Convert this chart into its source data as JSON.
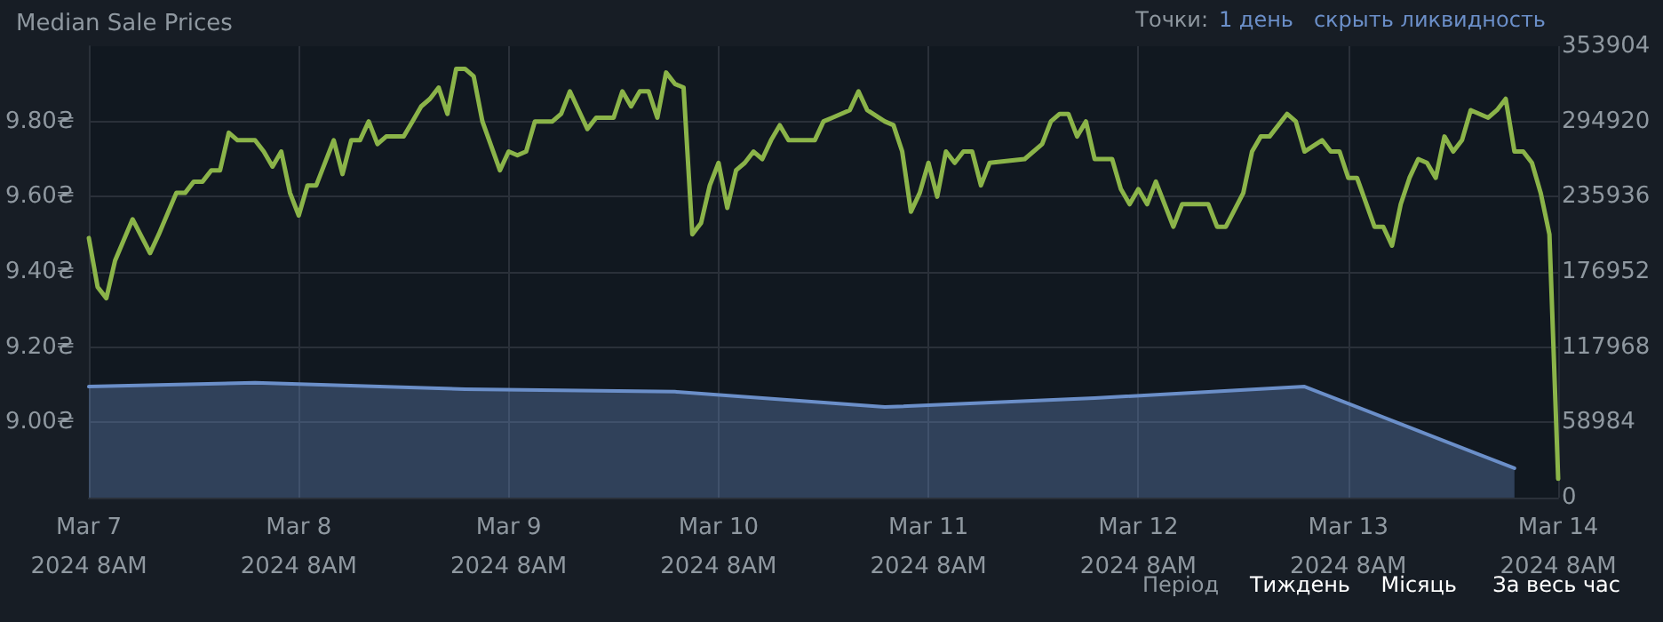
{
  "chart_data": {
    "type": "line",
    "title": "Median Sale Prices",
    "annotations": [
      "Точки:",
      "1 день",
      "скрыть ликвидность",
      "Період",
      "Тиждень",
      "Місяць",
      "За весь час"
    ],
    "xlim": [
      "2024-03-07T08:00",
      "2024-03-14T08:00"
    ],
    "xticks": [
      {
        "value": "2024-03-07T08:00",
        "label": "Mar 7\n2024 8AM"
      },
      {
        "value": "2024-03-08T08:00",
        "label": "Mar 8\n2024 8AM"
      },
      {
        "value": "2024-03-09T08:00",
        "label": "Mar 9\n2024 8AM"
      },
      {
        "value": "2024-03-10T08:00",
        "label": "Mar 10\n2024 8AM"
      },
      {
        "value": "2024-03-11T08:00",
        "label": "Mar 11\n2024 8AM"
      },
      {
        "value": "2024-03-12T08:00",
        "label": "Mar 12\n2024 8AM"
      },
      {
        "value": "2024-03-13T08:00",
        "label": "Mar 13\n2024 8AM"
      },
      {
        "value": "2024-03-14T08:00",
        "label": "Mar 14\n2024 8AM"
      }
    ],
    "ylim": [
      8.8,
      10.0
    ],
    "yticks": [
      {
        "value": 9.0,
        "label": "9.00₴"
      },
      {
        "value": 9.2,
        "label": "9.20₴"
      },
      {
        "value": 9.4,
        "label": "9.40₴"
      },
      {
        "value": 9.6,
        "label": "9.60₴"
      },
      {
        "value": 9.8,
        "label": "9.80₴"
      }
    ],
    "y2lim": [
      0,
      353904
    ],
    "y2ticks": [
      0,
      58984,
      117968,
      176952,
      235936,
      294920,
      353904
    ],
    "grid": true,
    "marker": "none",
    "line_style": "solid",
    "series": [
      {
        "type": "area",
        "axis": "y2",
        "color": "#6b8fc9",
        "x": [
          "2024-03-07T08:00",
          "2024-03-08T03:00",
          "2024-03-09T03:00",
          "2024-03-10T03:00",
          "2024-03-11T03:00",
          "2024-03-12T03:00",
          "2024-03-13T03:00",
          "2024-03-14T03:00"
        ],
        "values": [
          87000,
          90000,
          85000,
          83000,
          71000,
          78000,
          87000,
          23000
        ]
      },
      {
        "color": "#8bb449",
        "x": [
          "2024-03-07T08:00",
          "2024-03-07T09:00",
          "2024-03-07T10:00",
          "2024-03-07T11:00",
          "2024-03-07T13:00",
          "2024-03-07T15:00",
          "2024-03-07T16:00",
          "2024-03-07T18:00",
          "2024-03-07T19:00",
          "2024-03-07T20:00",
          "2024-03-07T21:00",
          "2024-03-07T22:00",
          "2024-03-07T23:00",
          "2024-03-08T00:00",
          "2024-03-08T01:00",
          "2024-03-08T03:00",
          "2024-03-08T04:00",
          "2024-03-08T05:00",
          "2024-03-08T06:00",
          "2024-03-08T07:00",
          "2024-03-08T08:00",
          "2024-03-08T09:00",
          "2024-03-08T10:00",
          "2024-03-08T12:00",
          "2024-03-08T13:00",
          "2024-03-08T14:00",
          "2024-03-08T15:00",
          "2024-03-08T16:00",
          "2024-03-08T17:00",
          "2024-03-08T18:00",
          "2024-03-08T20:00",
          "2024-03-08T21:00",
          "2024-03-08T22:00",
          "2024-03-08T23:00",
          "2024-03-09T00:00",
          "2024-03-09T01:00",
          "2024-03-09T02:00",
          "2024-03-09T03:00",
          "2024-03-09T04:00",
          "2024-03-09T05:00",
          "2024-03-09T07:00",
          "2024-03-09T08:00",
          "2024-03-09T09:00",
          "2024-03-09T10:00",
          "2024-03-09T11:00",
          "2024-03-09T12:00",
          "2024-03-09T13:00",
          "2024-03-09T14:00",
          "2024-03-09T15:00",
          "2024-03-09T16:00",
          "2024-03-09T17:00",
          "2024-03-09T18:00",
          "2024-03-09T20:00",
          "2024-03-09T21:00",
          "2024-03-09T22:00",
          "2024-03-09T23:00",
          "2024-03-10T00:00",
          "2024-03-10T01:00",
          "2024-03-10T02:00",
          "2024-03-10T03:00",
          "2024-03-10T04:00",
          "2024-03-10T05:00",
          "2024-03-10T06:00",
          "2024-03-10T07:00",
          "2024-03-10T08:00",
          "2024-03-10T09:00",
          "2024-03-10T10:00",
          "2024-03-10T11:00",
          "2024-03-10T12:00",
          "2024-03-10T13:00",
          "2024-03-10T14:00",
          "2024-03-10T15:00",
          "2024-03-10T16:00",
          "2024-03-10T19:00",
          "2024-03-10T20:00",
          "2024-03-10T21:00",
          "2024-03-10T22:00",
          "2024-03-10T23:00",
          "2024-03-11T00:00",
          "2024-03-11T01:00",
          "2024-03-11T03:00",
          "2024-03-11T04:00",
          "2024-03-11T05:00",
          "2024-03-11T06:00",
          "2024-03-11T07:00",
          "2024-03-11T08:00",
          "2024-03-11T09:00",
          "2024-03-11T10:00",
          "2024-03-11T11:00",
          "2024-03-11T12:00",
          "2024-03-11T13:00",
          "2024-03-11T14:00",
          "2024-03-11T15:00",
          "2024-03-11T19:00",
          "2024-03-11T21:00",
          "2024-03-11T22:00",
          "2024-03-11T23:00",
          "2024-03-12T00:00",
          "2024-03-12T01:00",
          "2024-03-12T02:00",
          "2024-03-12T03:00",
          "2024-03-12T05:00",
          "2024-03-12T06:00",
          "2024-03-12T07:00",
          "2024-03-12T08:00",
          "2024-03-12T09:00",
          "2024-03-12T10:00",
          "2024-03-12T12:00",
          "2024-03-12T13:00",
          "2024-03-12T15:00",
          "2024-03-12T16:00",
          "2024-03-12T17:00",
          "2024-03-12T18:00",
          "2024-03-12T20:00",
          "2024-03-12T21:00",
          "2024-03-12T22:00",
          "2024-03-12T23:00",
          "2024-03-13T01:00",
          "2024-03-13T02:00",
          "2024-03-13T03:00",
          "2024-03-13T05:00",
          "2024-03-13T06:00",
          "2024-03-13T07:00",
          "2024-03-13T08:00",
          "2024-03-13T09:00",
          "2024-03-13T11:00",
          "2024-03-13T12:00",
          "2024-03-13T13:00",
          "2024-03-13T14:00",
          "2024-03-13T15:00",
          "2024-03-13T16:00",
          "2024-03-13T17:00",
          "2024-03-13T18:00",
          "2024-03-13T19:00",
          "2024-03-13T20:00",
          "2024-03-13T21:00",
          "2024-03-13T22:00",
          "2024-03-13T23:00",
          "2024-03-14T00:00",
          "2024-03-14T01:00",
          "2024-03-14T02:00",
          "2024-03-14T03:00",
          "2024-03-14T04:00",
          "2024-03-14T05:00",
          "2024-03-14T06:00",
          "2024-03-14T07:00",
          "2024-03-14T08:00"
        ],
        "values": [
          9.49,
          9.36,
          9.33,
          9.43,
          9.54,
          9.45,
          9.5,
          9.61,
          9.61,
          9.64,
          9.64,
          9.67,
          9.67,
          9.77,
          9.75,
          9.75,
          9.72,
          9.68,
          9.72,
          9.61,
          9.55,
          9.63,
          9.63,
          9.75,
          9.66,
          9.75,
          9.75,
          9.8,
          9.74,
          9.76,
          9.76,
          9.8,
          9.84,
          9.86,
          9.89,
          9.82,
          9.94,
          9.94,
          9.92,
          9.8,
          9.67,
          9.72,
          9.71,
          9.72,
          9.8,
          9.8,
          9.8,
          9.82,
          9.88,
          9.83,
          9.78,
          9.81,
          9.81,
          9.88,
          9.84,
          9.88,
          9.88,
          9.81,
          9.93,
          9.9,
          9.89,
          9.5,
          9.53,
          9.63,
          9.69,
          9.57,
          9.67,
          9.69,
          9.72,
          9.7,
          9.75,
          9.79,
          9.75,
          9.75,
          9.8,
          9.81,
          9.82,
          9.83,
          9.88,
          9.83,
          9.8,
          9.79,
          9.72,
          9.56,
          9.61,
          9.69,
          9.6,
          9.72,
          9.69,
          9.72,
          9.72,
          9.63,
          9.69,
          9.7,
          9.74,
          9.8,
          9.82,
          9.82,
          9.76,
          9.8,
          9.7,
          9.7,
          9.62,
          9.58,
          9.62,
          9.58,
          9.64,
          9.52,
          9.58,
          9.58,
          9.58,
          9.52,
          9.52,
          9.61,
          9.72,
          9.76,
          9.76,
          9.82,
          9.8,
          9.72,
          9.75,
          9.72,
          9.72,
          9.65,
          9.65,
          9.52,
          9.52,
          9.47,
          9.58,
          9.65,
          9.7,
          9.69,
          9.65,
          9.76,
          9.72,
          9.75,
          9.83,
          9.82,
          9.81,
          9.83,
          9.86,
          9.72,
          9.72,
          9.69,
          9.61,
          9.5,
          8.85
        ]
      }
    ]
  }
}
